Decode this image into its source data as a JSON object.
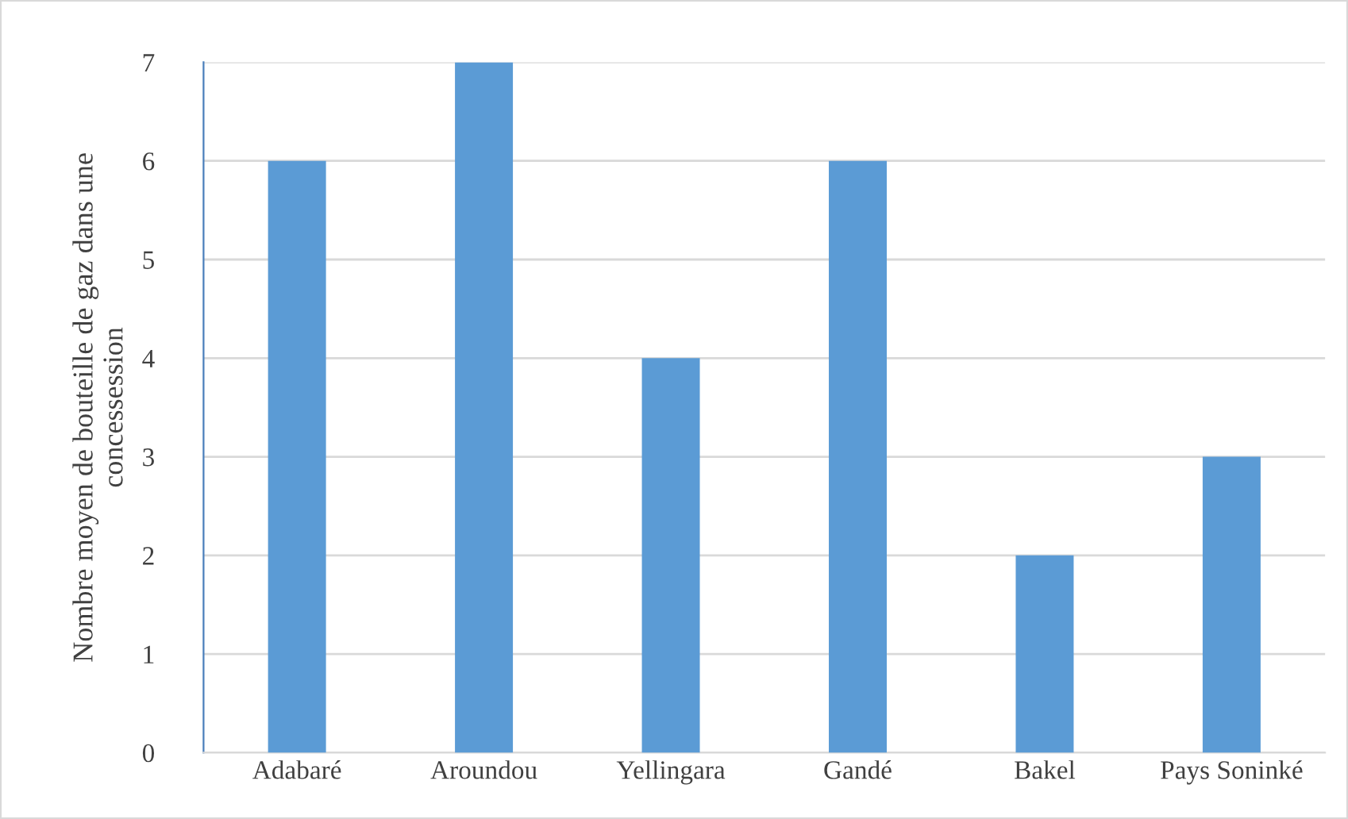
{
  "chart_data": {
    "type": "bar",
    "ylabel": "Nombre moyen de bouteille de gaz dans une\nconcessession",
    "categories": [
      "Adabaré",
      "Aroundou",
      "Yellingara",
      "Gandé",
      "Bakel",
      "Pays Soninké"
    ],
    "values": [
      6,
      7,
      4,
      6,
      2,
      3
    ],
    "color": "#5b9bd5",
    "ylim": [
      0,
      7
    ],
    "yticks": [
      0,
      1,
      2,
      3,
      4,
      5,
      6,
      7
    ],
    "grid": "y",
    "legend": false
  }
}
